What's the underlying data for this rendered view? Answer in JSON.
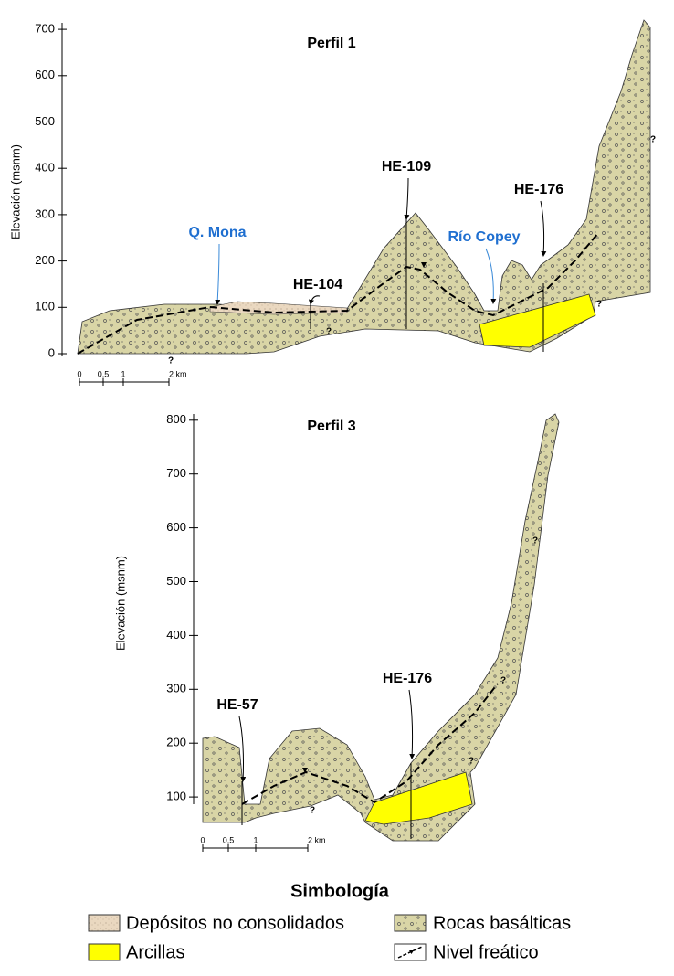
{
  "profiles": [
    {
      "title": "Perfil 1",
      "y_axis_label": "Elevación (msnm)",
      "yticks": [
        0,
        100,
        200,
        300,
        400,
        500,
        600,
        700
      ],
      "scale_labels": [
        "0",
        "0,5",
        "1",
        "2 km"
      ],
      "labels": [
        "Q. Mona",
        "HE-104",
        "HE-109",
        "Río Copey",
        "HE-176"
      ],
      "question_marks": [
        "?",
        "?",
        "?",
        "?"
      ]
    },
    {
      "title": "Perfil 3",
      "y_axis_label": "Elevación (msnm)",
      "yticks": [
        100,
        200,
        300,
        400,
        500,
        600,
        700,
        800
      ],
      "scale_labels": [
        "0",
        "0,5",
        "1",
        "2 km"
      ],
      "labels": [
        "HE-57",
        "HE-176"
      ],
      "question_marks": [
        "?",
        "?",
        "?",
        "?"
      ]
    }
  ],
  "legend": {
    "title": "Simbología",
    "items": [
      "Depósitos no consolidados",
      "Rocas basálticas",
      "Arcillas",
      "Nivel freático"
    ]
  }
}
